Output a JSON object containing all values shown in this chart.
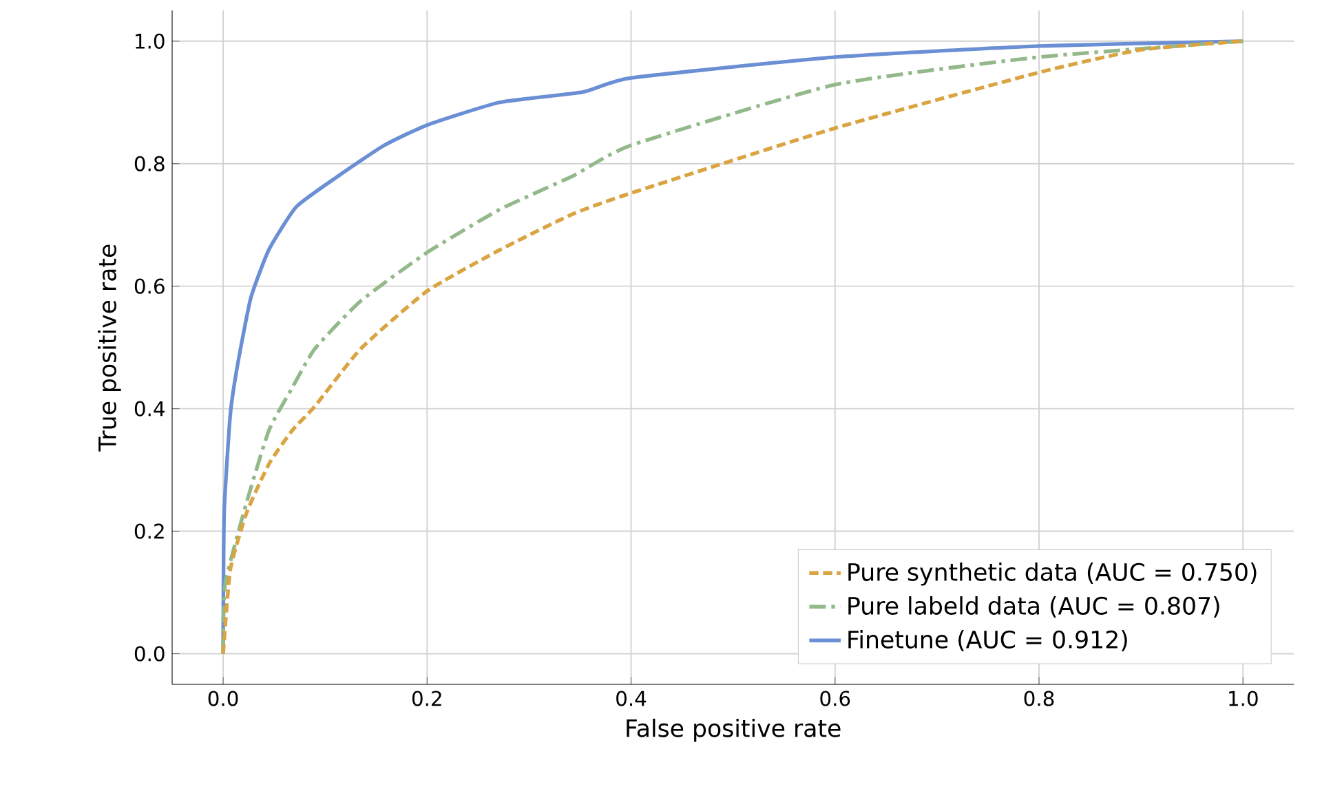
{
  "chart_data": {
    "type": "line",
    "xlabel": "False positive rate",
    "ylabel": "True positive rate",
    "xlim": [
      -0.05,
      1.05
    ],
    "ylim": [
      -0.05,
      1.05
    ],
    "xticks": [
      {
        "value": 0,
        "label": "0.0"
      },
      0.2,
      0.4,
      0.6,
      0.8,
      {
        "value": 1,
        "label": "1.0"
      }
    ],
    "yticks": [
      {
        "value": 0,
        "label": "0.0"
      },
      0.2,
      0.4,
      0.6,
      0.8,
      {
        "value": 1,
        "label": "1.0"
      }
    ],
    "grid": true,
    "legend": "bottom right",
    "marker": "none",
    "series": [
      {
        "name": "Pure synthetic data (AUC = 0.750)",
        "color": "#d9a441",
        "line_style": "dashed",
        "x": [
          0,
          0.007,
          0.023,
          0.045,
          0.068,
          0.09,
          0.135,
          0.2,
          0.271,
          0.343,
          0.4,
          0.6,
          0.8,
          0.9,
          1
        ],
        "values": [
          0,
          0.137,
          0.23,
          0.31,
          0.365,
          0.404,
          0.498,
          0.592,
          0.659,
          0.718,
          0.752,
          0.858,
          0.949,
          0.986,
          1
        ]
      },
      {
        "name": "Pure labeld data (AUC = 0.807)",
        "color": "#93b98a",
        "line_style": "dashdot",
        "x": [
          0,
          0.002,
          0.023,
          0.045,
          0.068,
          0.09,
          0.135,
          0.2,
          0.271,
          0.343,
          0.4,
          0.6,
          0.8,
          1
        ],
        "values": [
          0,
          0.114,
          0.247,
          0.365,
          0.435,
          0.498,
          0.576,
          0.655,
          0.725,
          0.78,
          0.83,
          0.929,
          0.974,
          1
        ]
      },
      {
        "name": "Finetune (AUC = 0.912)",
        "color": "#6b8fd4",
        "line_style": "solid",
        "x": [
          0,
          0.001,
          0.007,
          0.014,
          0.027,
          0.045,
          0.072,
          0.113,
          0.158,
          0.2,
          0.271,
          0.353,
          0.4,
          0.6,
          0.8,
          1
        ],
        "values": [
          0,
          0.23,
          0.39,
          0.47,
          0.58,
          0.66,
          0.73,
          0.78,
          0.83,
          0.863,
          0.9,
          0.917,
          0.94,
          0.974,
          0.992,
          1
        ]
      }
    ]
  }
}
